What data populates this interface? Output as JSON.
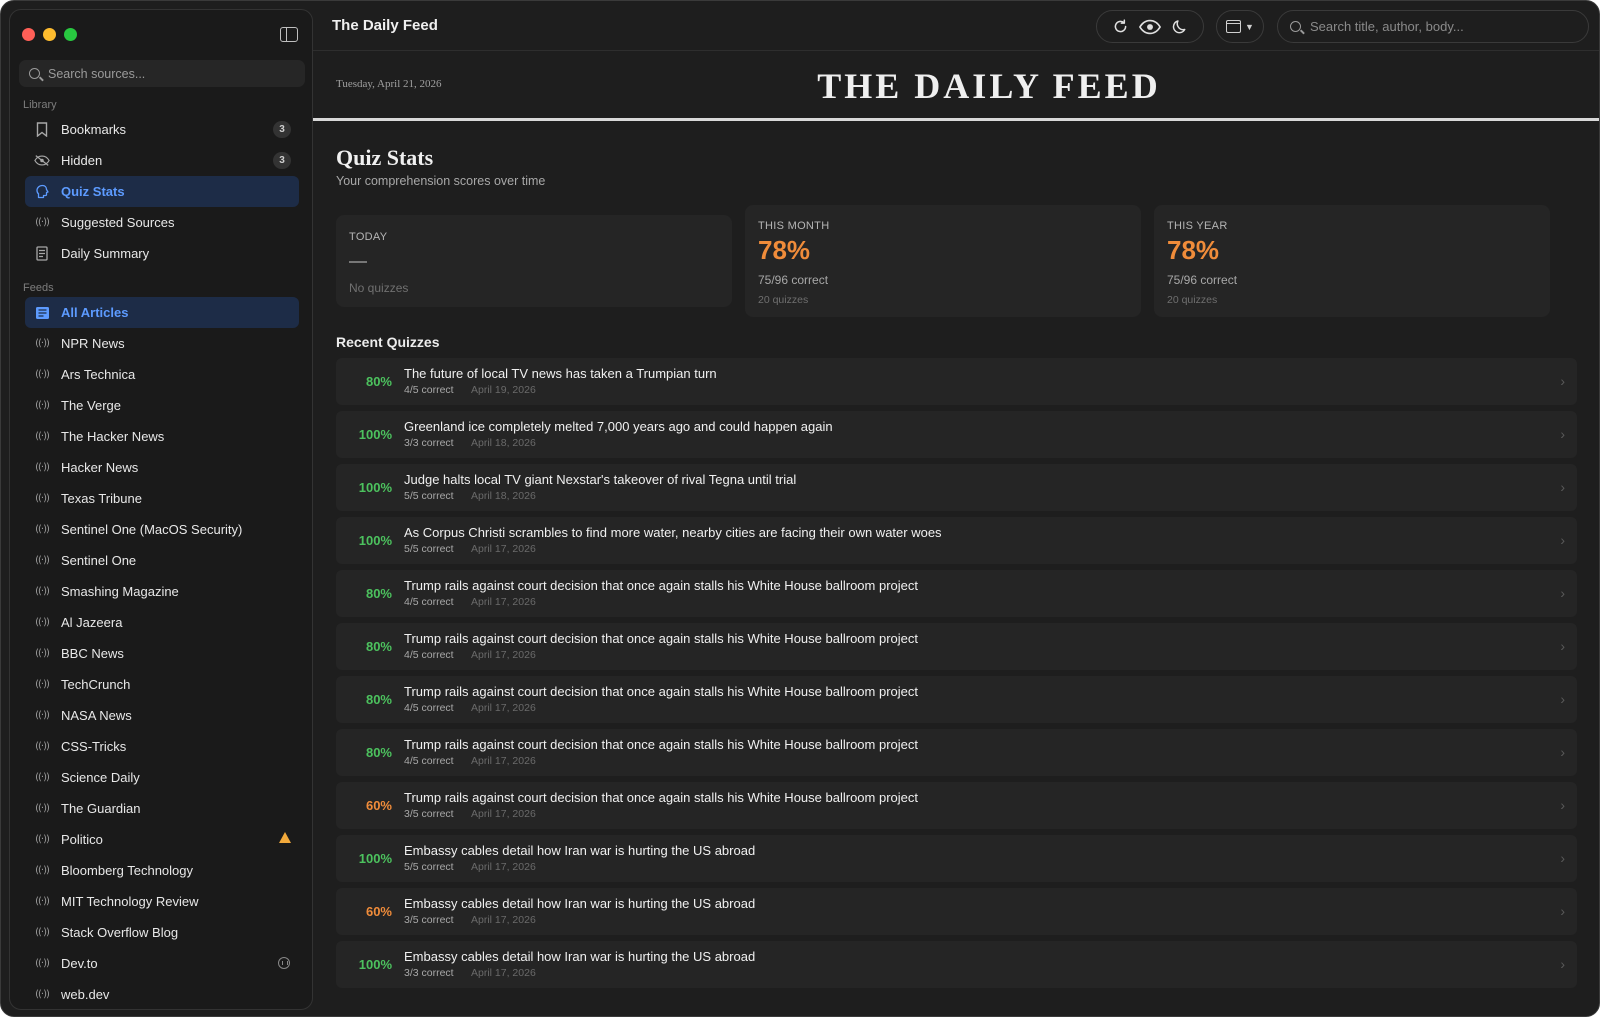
{
  "colors": {
    "accent": "#5d9bff",
    "score_green": "#4cc25e",
    "score_orange": "#f08c3a"
  },
  "sidebar": {
    "search_placeholder": "Search sources...",
    "library_label": "Library",
    "library": [
      {
        "label": "Bookmarks",
        "icon": "bookmark-icon",
        "badge": "3"
      },
      {
        "label": "Hidden",
        "icon": "eye-slash-icon",
        "badge": "3"
      },
      {
        "label": "Quiz Stats",
        "icon": "brain-icon",
        "active": true
      },
      {
        "label": "Suggested Sources",
        "icon": "broadcast-icon"
      },
      {
        "label": "Daily Summary",
        "icon": "document-icon"
      }
    ],
    "feeds_label": "Feeds",
    "feeds": [
      {
        "label": "All Articles",
        "icon": "newspaper-icon",
        "active": true
      },
      {
        "label": "NPR News"
      },
      {
        "label": "Ars Technica"
      },
      {
        "label": "The Verge"
      },
      {
        "label": "The Hacker News"
      },
      {
        "label": "Hacker News"
      },
      {
        "label": "Texas Tribune"
      },
      {
        "label": "Sentinel One (MacOS Security)"
      },
      {
        "label": "Sentinel One"
      },
      {
        "label": "Smashing Magazine"
      },
      {
        "label": "Al Jazeera"
      },
      {
        "label": "BBC News"
      },
      {
        "label": "TechCrunch"
      },
      {
        "label": "NASA News"
      },
      {
        "label": "CSS-Tricks"
      },
      {
        "label": "Science Daily"
      },
      {
        "label": "The Guardian"
      },
      {
        "label": "Politico",
        "status": "warning"
      },
      {
        "label": "Bloomberg Technology"
      },
      {
        "label": "MIT Technology Review"
      },
      {
        "label": "Stack Overflow Blog"
      },
      {
        "label": "Dev.to",
        "status": "paused"
      },
      {
        "label": "web.dev"
      }
    ]
  },
  "toolbar": {
    "title": "The Daily Feed",
    "search_placeholder": "Search title, author, body..."
  },
  "masthead": {
    "date": "Tuesday, April 21, 2026",
    "title": "THE DAILY FEED"
  },
  "page": {
    "title": "Quiz Stats",
    "subtitle": "Your comprehension scores over time"
  },
  "stats": {
    "today": {
      "label": "TODAY",
      "value": "—",
      "note": "No quizzes"
    },
    "month": {
      "label": "THIS MONTH",
      "value": "78%",
      "correct": "75/96 correct",
      "quizzes": "20 quizzes"
    },
    "year": {
      "label": "THIS YEAR",
      "value": "78%",
      "correct": "75/96 correct",
      "quizzes": "20 quizzes"
    }
  },
  "recent": {
    "heading": "Recent Quizzes",
    "items": [
      {
        "score": "80%",
        "title": "The future of local TV news has taken a Trumpian turn",
        "correct": "4/5 correct",
        "date": "April 19, 2026"
      },
      {
        "score": "100%",
        "title": "Greenland ice completely melted 7,000 years ago and could happen again",
        "correct": "3/3 correct",
        "date": "April 18, 2026"
      },
      {
        "score": "100%",
        "title": "Judge halts local TV giant Nexstar's takeover of rival Tegna until trial",
        "correct": "5/5 correct",
        "date": "April 18, 2026"
      },
      {
        "score": "100%",
        "title": "As Corpus Christi scrambles to find more water, nearby cities are facing their own water woes",
        "correct": "5/5 correct",
        "date": "April 17, 2026"
      },
      {
        "score": "80%",
        "title": "Trump rails against court decision that once again stalls his White House ballroom project",
        "correct": "4/5 correct",
        "date": "April 17, 2026"
      },
      {
        "score": "80%",
        "title": "Trump rails against court decision that once again stalls his White House ballroom project",
        "correct": "4/5 correct",
        "date": "April 17, 2026"
      },
      {
        "score": "80%",
        "title": "Trump rails against court decision that once again stalls his White House ballroom project",
        "correct": "4/5 correct",
        "date": "April 17, 2026"
      },
      {
        "score": "80%",
        "title": "Trump rails against court decision that once again stalls his White House ballroom project",
        "correct": "4/5 correct",
        "date": "April 17, 2026"
      },
      {
        "score": "60%",
        "title": "Trump rails against court decision that once again stalls his White House ballroom project",
        "correct": "3/5 correct",
        "date": "April 17, 2026"
      },
      {
        "score": "100%",
        "title": "Embassy cables detail how Iran war is hurting the US abroad",
        "correct": "5/5 correct",
        "date": "April 17, 2026"
      },
      {
        "score": "60%",
        "title": "Embassy cables detail how Iran war is hurting the US abroad",
        "correct": "3/5 correct",
        "date": "April 17, 2026"
      },
      {
        "score": "100%",
        "title": "Embassy cables detail how Iran war is hurting the US abroad",
        "correct": "3/3 correct",
        "date": "April 17, 2026"
      }
    ]
  }
}
